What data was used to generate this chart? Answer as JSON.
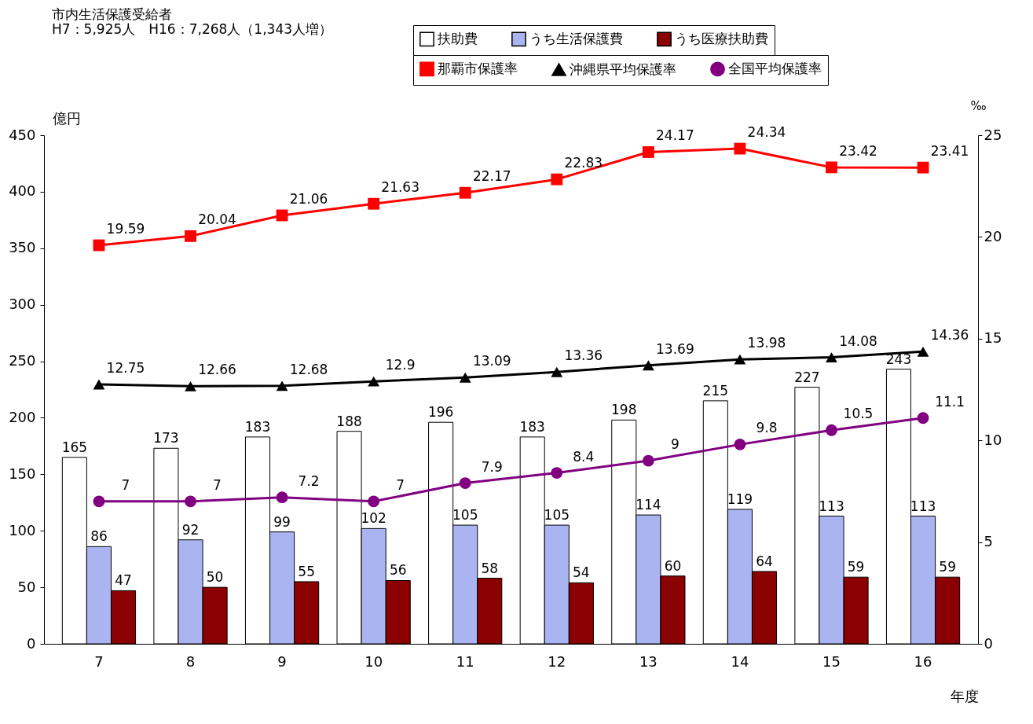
{
  "chart_data": {
    "type": "bar",
    "title": "市内生活保護受給者 H7：5,925人　H16：7,268人（1,343人増）",
    "xlabel": "年度",
    "ylabel": "億円",
    "y2label": "‰",
    "categories": [
      "7",
      "8",
      "9",
      "10",
      "11",
      "12",
      "13",
      "14",
      "15",
      "16"
    ],
    "series": [
      {
        "name": "扶助費",
        "type": "bar",
        "color": "#ffffff",
        "values": [
          165,
          173,
          183,
          188,
          196,
          183,
          198,
          215,
          227,
          243
        ]
      },
      {
        "name": "うち生活保護費",
        "type": "bar",
        "color": "#aab4f0",
        "values": [
          86,
          92,
          99,
          102,
          105,
          105,
          114,
          119,
          113,
          113
        ]
      },
      {
        "name": "うち医療扶助費",
        "type": "bar",
        "color": "#8b0000",
        "values": [
          47,
          50,
          55,
          56,
          58,
          54,
          60,
          64,
          59,
          59
        ]
      },
      {
        "name": "那覇市保護率",
        "type": "line",
        "axis": "y2",
        "marker": "square",
        "color": "#ff0000",
        "values": [
          19.59,
          20.04,
          21.06,
          21.63,
          22.17,
          22.83,
          24.17,
          24.34,
          23.42,
          23.41
        ]
      },
      {
        "name": "沖縄県平均保護率",
        "type": "line",
        "axis": "y2",
        "marker": "triangle",
        "color": "#000000",
        "values": [
          12.75,
          12.66,
          12.68,
          12.9,
          13.09,
          13.36,
          13.69,
          13.98,
          14.08,
          14.36
        ]
      },
      {
        "name": "全国平均保護率",
        "type": "line",
        "axis": "y2",
        "marker": "circle",
        "color": "#800080",
        "values": [
          7,
          7,
          7.2,
          7,
          7.9,
          8.4,
          9,
          9.8,
          10.5,
          11.1
        ]
      }
    ],
    "ylim": [
      0,
      450
    ],
    "yticks": [
      0,
      50,
      100,
      150,
      200,
      250,
      300,
      350,
      400,
      450
    ],
    "y2lim": [
      0,
      25
    ],
    "y2ticks": [
      0,
      5,
      10,
      15,
      20,
      25
    ],
    "data_labels": true,
    "legend": "top right"
  }
}
